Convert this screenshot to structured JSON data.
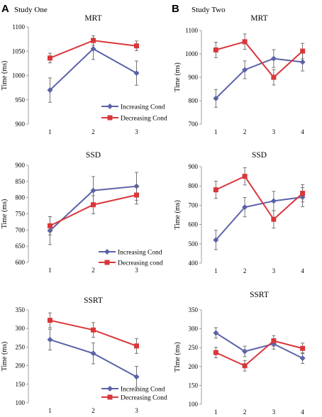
{
  "figure": {
    "study_one_letter": "A",
    "study_one_title": "Study One",
    "study_two_letter": "B",
    "study_two_title": "Study Two"
  },
  "colors": {
    "increasing": "#5b62a8",
    "decreasing": "#d9373b",
    "error_bar": "#666666"
  },
  "chart_data": [
    {
      "type": "line",
      "title": "MRT",
      "ylabel": "Time (ms)",
      "xlabel": "",
      "categories": [
        "1",
        "2",
        "3"
      ],
      "ylim": [
        900,
        1100
      ],
      "yticks": [
        900,
        950,
        1000,
        1050,
        1100
      ],
      "grid": false,
      "legend_position": "bottom-right",
      "series": [
        {
          "name": "Increasing Cond",
          "color": "#5b62a8",
          "marker": "diamond",
          "values": [
            970,
            1055,
            1005
          ],
          "errors": [
            25,
            22,
            25
          ]
        },
        {
          "name": "Decreasing Cond",
          "color": "#d9373b",
          "marker": "square",
          "values": [
            1036,
            1072,
            1061
          ],
          "errors": [
            10,
            10,
            10
          ]
        }
      ]
    },
    {
      "type": "line",
      "title": "SSD",
      "ylabel": "Time (ms)",
      "xlabel": "",
      "categories": [
        "1",
        "2",
        "3"
      ],
      "ylim": [
        600,
        900
      ],
      "yticks": [
        600,
        650,
        700,
        750,
        800,
        850,
        900
      ],
      "grid": false,
      "legend_position": "bottom-right",
      "series": [
        {
          "name": "Increasing Cond",
          "color": "#5b62a8",
          "marker": "diamond",
          "values": [
            698,
            822,
            835
          ],
          "errors": [
            43,
            43,
            43
          ]
        },
        {
          "name": "Decreasing cond",
          "color": "#d9373b",
          "marker": "square",
          "values": [
            713,
            778,
            808
          ],
          "errors": [
            28,
            28,
            28
          ]
        }
      ]
    },
    {
      "type": "line",
      "title": "SSRT",
      "ylabel": "Time (ms)",
      "xlabel": "",
      "categories": [
        "1",
        "2",
        "3"
      ],
      "ylim": [
        100,
        350
      ],
      "yticks": [
        100,
        150,
        200,
        250,
        300,
        350
      ],
      "grid": false,
      "legend_position": "bottom-right",
      "series": [
        {
          "name": "Increasing Cond",
          "color": "#5b62a8",
          "marker": "diamond",
          "values": [
            270,
            233,
            170
          ],
          "errors": [
            28,
            28,
            28
          ]
        },
        {
          "name": "Decreasing Cond",
          "color": "#d9373b",
          "marker": "square",
          "values": [
            322,
            296,
            253
          ],
          "errors": [
            20,
            20,
            20
          ]
        }
      ]
    },
    {
      "type": "line",
      "title": "MRT",
      "ylabel": "Time (ms)",
      "xlabel": "",
      "categories": [
        "1",
        "2",
        "3",
        "4"
      ],
      "ylim": [
        700,
        1100
      ],
      "yticks": [
        700,
        800,
        900,
        1000,
        1100
      ],
      "grid": false,
      "legend_position": "none",
      "series": [
        {
          "name": "",
          "color": "#5b62a8",
          "marker": "diamond",
          "values": [
            810,
            932,
            980,
            965
          ],
          "errors": [
            38,
            38,
            38,
            38
          ]
        },
        {
          "name": "",
          "color": "#d9373b",
          "marker": "square",
          "values": [
            1017,
            1052,
            900,
            1012
          ],
          "errors": [
            33,
            33,
            33,
            33
          ]
        }
      ]
    },
    {
      "type": "line",
      "title": "SSD",
      "ylabel": "Time (ms)",
      "xlabel": "",
      "categories": [
        "1",
        "2",
        "3",
        "4"
      ],
      "ylim": [
        400,
        900
      ],
      "yticks": [
        400,
        500,
        600,
        700,
        800,
        900
      ],
      "grid": false,
      "legend_position": "none",
      "series": [
        {
          "name": "",
          "color": "#5b62a8",
          "marker": "diamond",
          "values": [
            520,
            690,
            722,
            742
          ],
          "errors": [
            50,
            50,
            50,
            50
          ]
        },
        {
          "name": "",
          "color": "#d9373b",
          "marker": "square",
          "values": [
            780,
            850,
            627,
            762
          ],
          "errors": [
            45,
            45,
            45,
            45
          ]
        }
      ]
    },
    {
      "type": "line",
      "title": "SSRT",
      "ylabel": "TIme (ms)",
      "xlabel": "",
      "categories": [
        "1",
        "2",
        "3",
        "4"
      ],
      "ylim": [
        100,
        350
      ],
      "yticks": [
        100,
        150,
        200,
        250,
        300,
        350
      ],
      "grid": false,
      "legend_position": "none",
      "series": [
        {
          "name": "",
          "color": "#5b62a8",
          "marker": "diamond",
          "values": [
            289,
            240,
            260,
            222
          ],
          "errors": [
            14,
            14,
            14,
            14
          ]
        },
        {
          "name": "",
          "color": "#d9373b",
          "marker": "square",
          "values": [
            237,
            202,
            268,
            248
          ],
          "errors": [
            14,
            14,
            14,
            14
          ]
        }
      ]
    }
  ]
}
